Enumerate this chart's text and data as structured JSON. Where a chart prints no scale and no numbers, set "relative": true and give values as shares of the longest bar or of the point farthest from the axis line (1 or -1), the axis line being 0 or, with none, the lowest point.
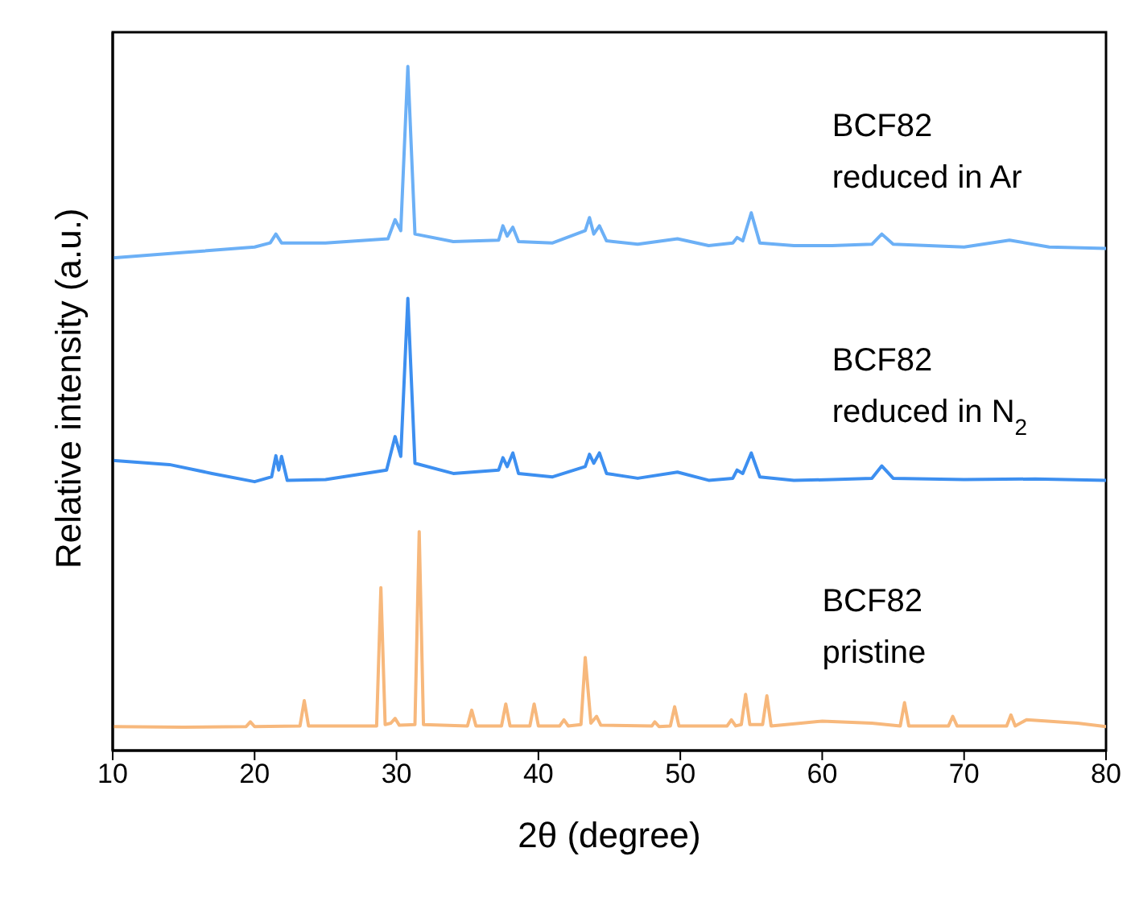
{
  "chart_data": {
    "type": "line",
    "relative": true,
    "xlabel": "2θ (degree)",
    "ylabel": "Relative intensity (a.u.)",
    "xlim": [
      10,
      80
    ],
    "xticks": [
      10,
      20,
      30,
      40,
      50,
      60,
      70,
      80
    ],
    "grid": false,
    "legend": false,
    "marker": "none",
    "line_style": "solid",
    "series": [
      {
        "name": "BCF82\nreduced in Ar",
        "color": "#6cb0f6",
        "x": [
          10,
          15,
          20,
          21.1,
          21.5,
          21.9,
          25,
          29.4,
          29.9,
          30.3,
          30.8,
          31.3,
          34,
          37.2,
          37.5,
          37.8,
          38.2,
          38.6,
          41,
          43.3,
          43.6,
          43.9,
          44.3,
          44.8,
          47,
          49.8,
          52,
          53.7,
          54,
          54.4,
          55,
          55.6,
          58,
          60.7,
          63.5,
          64.2,
          65,
          70,
          73.2,
          76,
          80
        ],
        "values": [
          0.72,
          0.728,
          0.736,
          0.742,
          0.755,
          0.742,
          0.742,
          0.748,
          0.776,
          0.76,
          1.0,
          0.755,
          0.744,
          0.746,
          0.767,
          0.752,
          0.765,
          0.744,
          0.742,
          0.76,
          0.779,
          0.755,
          0.767,
          0.745,
          0.74,
          0.748,
          0.738,
          0.742,
          0.75,
          0.745,
          0.786,
          0.742,
          0.738,
          0.738,
          0.74,
          0.755,
          0.74,
          0.736,
          0.746,
          0.736,
          0.734
        ]
      },
      {
        "name": "BCF82\nreduced in N$_{2}$",
        "color": "#3d8ff0",
        "x": [
          10,
          14,
          17,
          20,
          21.2,
          21.5,
          21.7,
          21.9,
          22.3,
          25,
          29.3,
          29.9,
          30.3,
          30.8,
          31.3,
          34,
          37.2,
          37.5,
          37.8,
          38.2,
          38.6,
          41,
          43.3,
          43.6,
          43.9,
          44.3,
          44.8,
          47,
          49.8,
          52,
          53.7,
          54,
          54.4,
          55,
          55.6,
          58,
          60.7,
          63.5,
          64.2,
          65,
          70,
          75,
          80
        ],
        "values": [
          0.424,
          0.418,
          0.405,
          0.393,
          0.4,
          0.431,
          0.41,
          0.43,
          0.395,
          0.396,
          0.41,
          0.459,
          0.43,
          0.661,
          0.42,
          0.405,
          0.41,
          0.428,
          0.415,
          0.435,
          0.405,
          0.4,
          0.415,
          0.433,
          0.42,
          0.435,
          0.405,
          0.398,
          0.407,
          0.395,
          0.398,
          0.41,
          0.405,
          0.435,
          0.4,
          0.395,
          0.396,
          0.398,
          0.416,
          0.398,
          0.396,
          0.397,
          0.395
        ]
      },
      {
        "name": "BCF82\npristine",
        "color": "#f7b87c",
        "x": [
          10,
          15,
          19.4,
          19.7,
          20,
          23.2,
          23.5,
          23.8,
          28.6,
          28.9,
          29.2,
          29.6,
          29.9,
          30.2,
          31.3,
          31.6,
          31.9,
          35,
          35.3,
          35.6,
          37.4,
          37.7,
          38,
          39.4,
          39.7,
          40,
          41.5,
          41.8,
          42.1,
          43,
          43.3,
          43.7,
          44.1,
          44.4,
          48,
          48.2,
          48.5,
          49.3,
          49.6,
          49.9,
          53.3,
          53.6,
          53.9,
          54.3,
          54.6,
          54.9,
          55.8,
          56.1,
          56.4,
          58.5,
          60,
          63.5,
          65.5,
          65.8,
          66.1,
          68.9,
          69.2,
          69.5,
          73,
          73.3,
          73.6,
          74.4,
          78,
          80
        ],
        "values": [
          0.035,
          0.034,
          0.035,
          0.042,
          0.035,
          0.036,
          0.073,
          0.036,
          0.036,
          0.238,
          0.038,
          0.04,
          0.047,
          0.037,
          0.038,
          0.32,
          0.038,
          0.036,
          0.059,
          0.036,
          0.036,
          0.068,
          0.036,
          0.036,
          0.068,
          0.036,
          0.036,
          0.045,
          0.036,
          0.038,
          0.136,
          0.04,
          0.05,
          0.037,
          0.036,
          0.042,
          0.035,
          0.036,
          0.064,
          0.036,
          0.036,
          0.045,
          0.036,
          0.038,
          0.082,
          0.038,
          0.038,
          0.08,
          0.036,
          0.04,
          0.043,
          0.04,
          0.036,
          0.07,
          0.036,
          0.036,
          0.05,
          0.036,
          0.036,
          0.052,
          0.036,
          0.045,
          0.04,
          0.035
        ]
      }
    ]
  }
}
